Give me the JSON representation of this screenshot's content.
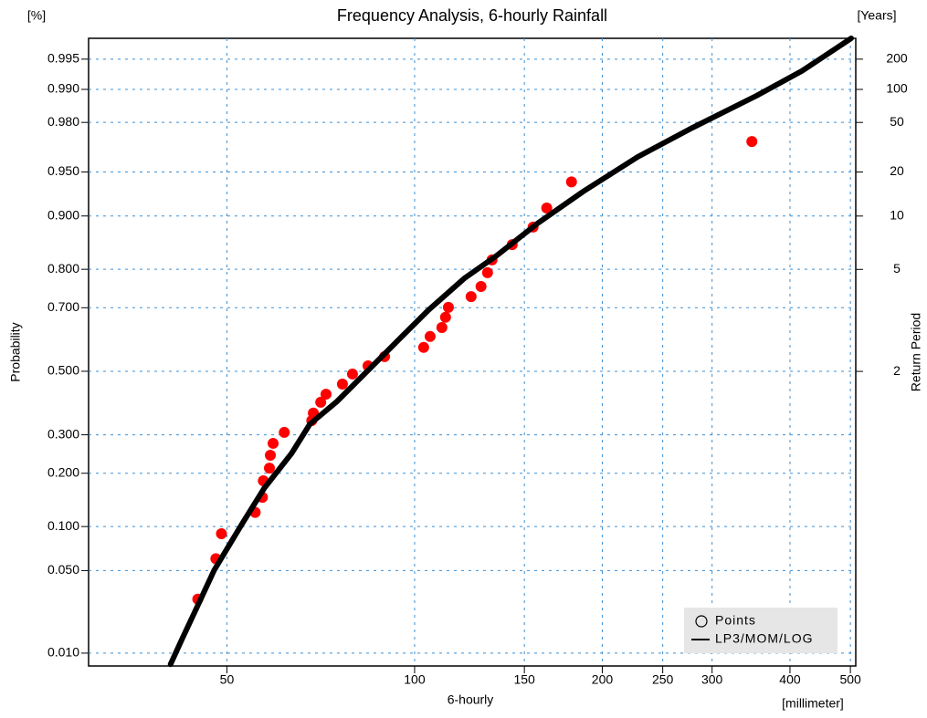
{
  "chart_data": {
    "type": "scatter",
    "title": "Frequency Analysis, 6-hourly Rainfall",
    "x_label": "6-hourly",
    "x_unit": "[millimeter]",
    "y_label": "Probability",
    "y_unit": "[%]",
    "y2_label": "Return Period",
    "y2_unit": "[Years]",
    "x_scale": "log",
    "y_scale": "probability",
    "y2_scale": "return-period",
    "grid": true,
    "legend": "lower right",
    "xlim": [
      30,
      510
    ],
    "xticks": [
      50,
      100,
      150,
      200,
      250,
      300,
      400,
      500
    ],
    "ylim": [
      0.0075,
      0.997
    ],
    "yticks": [
      {
        "value": 0.01,
        "label": "0.010"
      },
      {
        "value": 0.05,
        "label": "0.050"
      },
      {
        "value": 0.1,
        "label": "0.100"
      },
      {
        "value": 0.2,
        "label": "0.200"
      },
      {
        "value": 0.3,
        "label": "0.300"
      },
      {
        "value": 0.5,
        "label": "0.500"
      },
      {
        "value": 0.7,
        "label": "0.700"
      },
      {
        "value": 0.8,
        "label": "0.800"
      },
      {
        "value": 0.9,
        "label": "0.900"
      },
      {
        "value": 0.95,
        "label": "0.950"
      },
      {
        "value": 0.98,
        "label": "0.980"
      },
      {
        "value": 0.99,
        "label": "0.990"
      },
      {
        "value": 0.995,
        "label": "0.995"
      }
    ],
    "y2lim": [
      1.0076,
      333.3
    ],
    "y2ticks": [
      2,
      5,
      10,
      20,
      50,
      100,
      200
    ],
    "series": [
      {
        "name": "Points",
        "type": "scatter",
        "color": "#ff0000",
        "x": [
          44.9,
          48.0,
          49.0,
          55.5,
          57.0,
          57.2,
          58.5,
          58.7,
          59.3,
          61.8,
          68.4,
          68.8,
          70.7,
          72.1,
          76.6,
          79.5,
          84.2,
          89.5,
          103.4,
          105.9,
          110.6,
          112.1,
          113.3,
          123.2,
          127.8,
          130.9,
          133.1,
          143.4,
          154.9,
          162.9,
          178.5,
          347.5
        ],
        "values": [
          0.03,
          0.061,
          0.09,
          0.122,
          0.149,
          0.183,
          0.212,
          0.244,
          0.276,
          0.307,
          0.342,
          0.365,
          0.399,
          0.425,
          0.458,
          0.491,
          0.518,
          0.548,
          0.578,
          0.613,
          0.641,
          0.672,
          0.701,
          0.731,
          0.758,
          0.792,
          0.821,
          0.852,
          0.883,
          0.911,
          0.941,
          0.971
        ]
      },
      {
        "name": "LP3/MOM/LOG",
        "type": "line",
        "color": "#000000",
        "x": [
          40.6,
          42.4,
          44.6,
          47.7,
          52.8,
          57.4,
          63.5,
          67.9,
          75.1,
          83.1,
          95.1,
          105.2,
          120.3,
          135.4,
          157.6,
          186.4,
          228.1,
          279.2,
          353.3,
          418.1,
          501.5
        ],
        "values": [
          0.0078,
          0.0137,
          0.0247,
          0.0503,
          0.103,
          0.1675,
          0.249,
          0.331,
          0.402,
          0.491,
          0.61,
          0.693,
          0.779,
          0.83,
          0.889,
          0.931,
          0.9616,
          0.9778,
          0.9885,
          0.9934,
          0.997
        ]
      }
    ]
  }
}
